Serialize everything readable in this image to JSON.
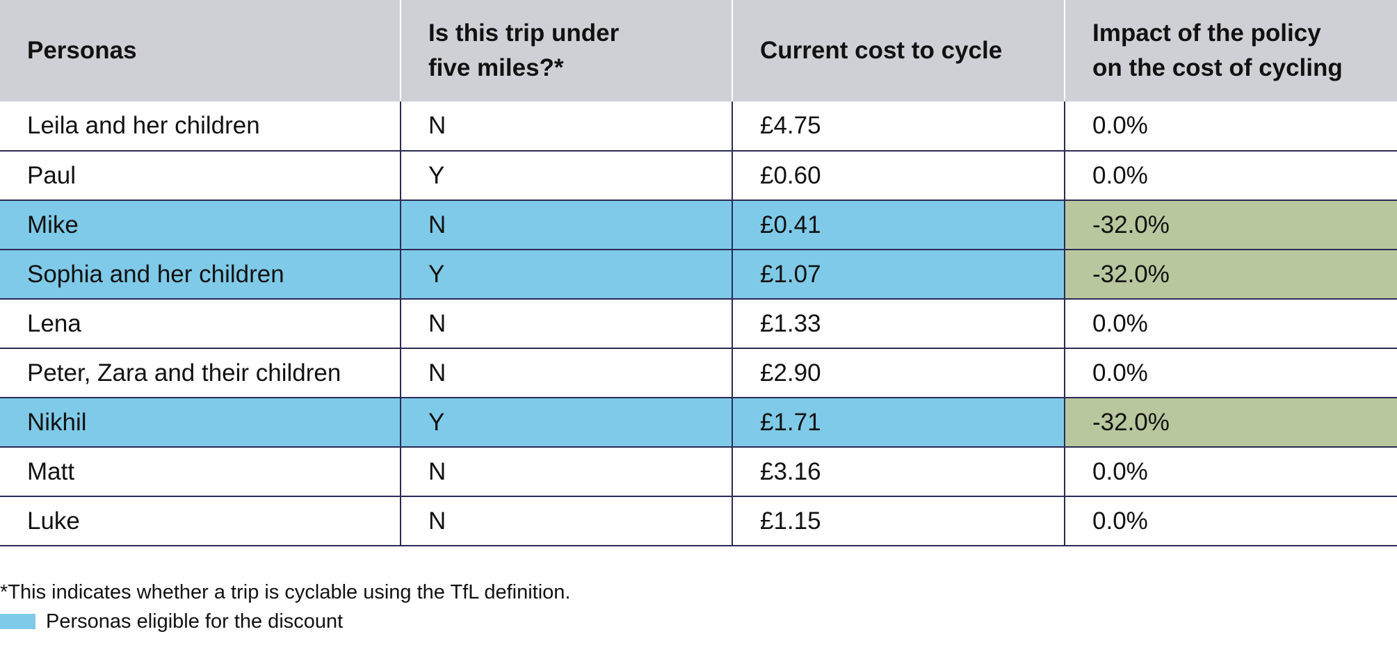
{
  "table": {
    "headers": [
      "Personas",
      "Is this trip under five miles?*",
      "Current cost to cycle",
      "Impact of the policy on the cost of cycling"
    ],
    "rows": [
      {
        "persona": "Leila and her children",
        "under_five": "N",
        "cost": "£4.75",
        "impact": "0.0%",
        "eligible": false
      },
      {
        "persona": "Paul",
        "under_five": "Y",
        "cost": "£0.60",
        "impact": "0.0%",
        "eligible": false
      },
      {
        "persona": "Mike",
        "under_five": "N",
        "cost": "£0.41",
        "impact": "-32.0%",
        "eligible": true
      },
      {
        "persona": "Sophia and her children",
        "under_five": "Y",
        "cost": "£1.07",
        "impact": "-32.0%",
        "eligible": true
      },
      {
        "persona": "Lena",
        "under_five": "N",
        "cost": "£1.33",
        "impact": "0.0%",
        "eligible": false
      },
      {
        "persona": "Peter, Zara and their children",
        "under_five": "N",
        "cost": "£2.90",
        "impact": "0.0%",
        "eligible": false
      },
      {
        "persona": "Nikhil",
        "under_five": "Y",
        "cost": "£1.71",
        "impact": "-32.0%",
        "eligible": true
      },
      {
        "persona": "Matt",
        "under_five": "N",
        "cost": "£3.16",
        "impact": "0.0%",
        "eligible": false
      },
      {
        "persona": "Luke",
        "under_five": "N",
        "cost": "£1.15",
        "impact": "0.0%",
        "eligible": false
      }
    ]
  },
  "footnote": "*This indicates whether a trip is cyclable using the TfL definition.",
  "legend": {
    "label": "Personas eligible for the discount"
  },
  "colors": {
    "header_bg": "#cfcfd6",
    "eligible_row": "#7fcae8",
    "impact_highlight": "#b9c79e",
    "row_border": "#2a2a55"
  }
}
